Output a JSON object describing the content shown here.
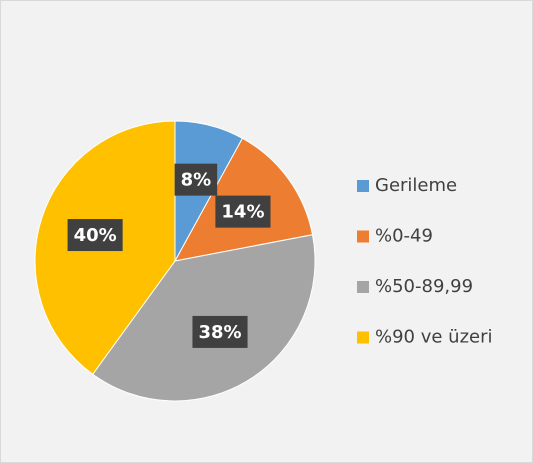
{
  "chart_data": {
    "type": "pie",
    "categories": [
      "Gerileme",
      "%0-49",
      "%50-89,99",
      "%90 ve üzeri"
    ],
    "values": [
      8,
      14,
      38,
      40
    ],
    "value_labels": [
      "8%",
      "14%",
      "38%",
      "40%"
    ],
    "colors": [
      "#5b9bd5",
      "#ed7d31",
      "#a5a5a5",
      "#ffc000"
    ],
    "legend": "right"
  }
}
